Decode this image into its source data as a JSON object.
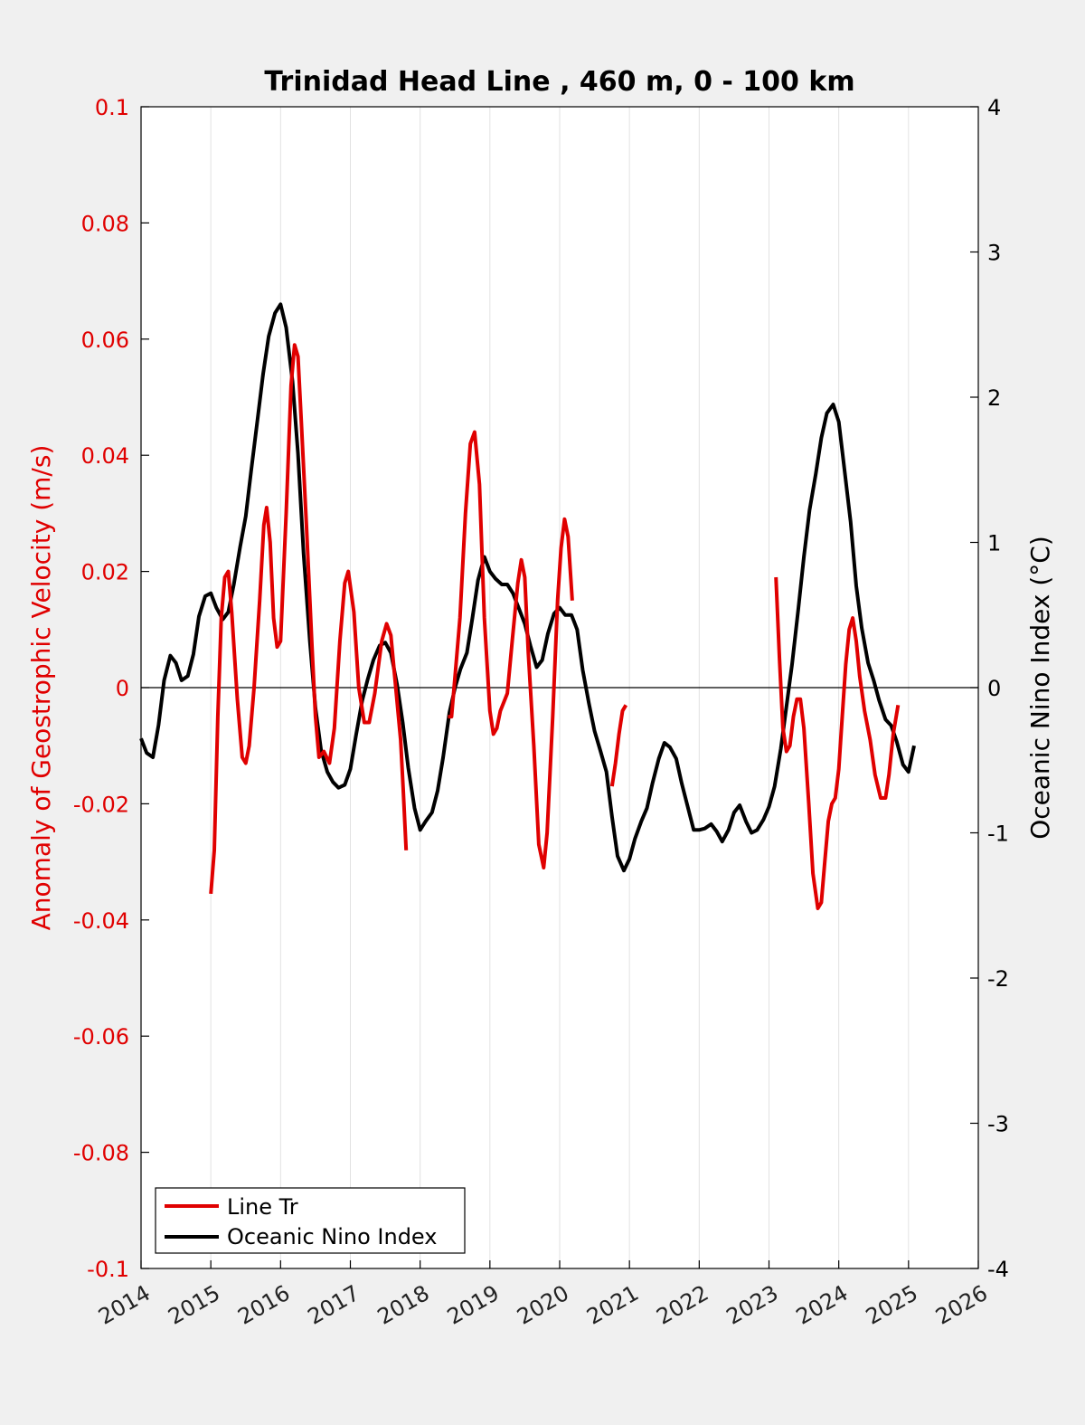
{
  "chart_data": {
    "type": "line",
    "title": "Trinidad Head Line , 460 m, 0 - 100 km",
    "ylabel_left": "Anomaly of Geostrophic Velocity (m/s)",
    "ylabel_right": "Oceanic Nino Index (°C)",
    "xlim": [
      2014,
      2026
    ],
    "ylim_left": [
      -0.1,
      0.1
    ],
    "ylim_right": [
      -4,
      4
    ],
    "x_ticks": [
      2014,
      2015,
      2016,
      2017,
      2018,
      2019,
      2020,
      2021,
      2022,
      2023,
      2024,
      2025,
      2026
    ],
    "x_tick_labels": [
      "2014",
      "2015",
      "2016",
      "2017",
      "2018",
      "2019",
      "2020",
      "2021",
      "2022",
      "2023",
      "2024",
      "2025",
      "2026"
    ],
    "y_left_ticks": [
      -0.1,
      -0.08,
      -0.06,
      -0.04,
      -0.02,
      0,
      0.02,
      0.04,
      0.06,
      0.08,
      0.1
    ],
    "y_left_tick_labels": [
      "-0.1",
      "-0.08",
      "-0.06",
      "-0.04",
      "-0.02",
      "0",
      "0.02",
      "0.04",
      "0.06",
      "0.08",
      "0.1"
    ],
    "y_right_ticks": [
      -4,
      -3,
      -2,
      -1,
      0,
      1,
      2,
      3,
      4
    ],
    "y_right_tick_labels": [
      "-4",
      "-3",
      "-2",
      "-1",
      "0",
      "1",
      "2",
      "3",
      "4"
    ],
    "grid": "vertical",
    "legend_position": "bottom-left",
    "series": [
      {
        "name": "Line Tr",
        "axis": "left",
        "color": "#e00000",
        "segments": [
          [
            [
              2015.0,
              -0.0355
            ],
            [
              2015.05,
              -0.028
            ],
            [
              2015.1,
              -0.005
            ],
            [
              2015.15,
              0.012
            ],
            [
              2015.2,
              0.019
            ],
            [
              2015.25,
              0.02
            ],
            [
              2015.3,
              0.013
            ],
            [
              2015.38,
              -0.002
            ],
            [
              2015.45,
              -0.012
            ],
            [
              2015.5,
              -0.013
            ],
            [
              2015.55,
              -0.01
            ],
            [
              2015.62,
              0.0
            ],
            [
              2015.7,
              0.015
            ],
            [
              2015.76,
              0.028
            ],
            [
              2015.8,
              0.031
            ],
            [
              2015.85,
              0.025
            ],
            [
              2015.9,
              0.012
            ],
            [
              2015.95,
              0.007
            ],
            [
              2016.0,
              0.008
            ],
            [
              2016.08,
              0.03
            ],
            [
              2016.15,
              0.052
            ],
            [
              2016.2,
              0.059
            ],
            [
              2016.25,
              0.057
            ],
            [
              2016.3,
              0.045
            ],
            [
              2016.37,
              0.028
            ],
            [
              2016.45,
              0.007
            ],
            [
              2016.5,
              -0.005
            ],
            [
              2016.55,
              -0.012
            ],
            [
              2016.62,
              -0.011
            ],
            [
              2016.7,
              -0.013
            ],
            [
              2016.77,
              -0.007
            ],
            [
              2016.85,
              0.008
            ],
            [
              2016.92,
              0.018
            ],
            [
              2016.97,
              0.02
            ],
            [
              2017.05,
              0.013
            ],
            [
              2017.12,
              0.0
            ],
            [
              2017.2,
              -0.006
            ],
            [
              2017.27,
              -0.006
            ],
            [
              2017.35,
              -0.001
            ],
            [
              2017.45,
              0.008
            ],
            [
              2017.52,
              0.011
            ],
            [
              2017.58,
              0.009
            ],
            [
              2017.65,
              0.0
            ],
            [
              2017.72,
              -0.009
            ],
            [
              2017.76,
              -0.018
            ],
            [
              2017.8,
              -0.028
            ]
          ],
          [
            [
              2018.4,
              -0.005
            ],
            [
              2018.45,
              -0.005
            ],
            [
              2018.5,
              0.002
            ],
            [
              2018.57,
              0.012
            ],
            [
              2018.65,
              0.03
            ],
            [
              2018.72,
              0.042
            ],
            [
              2018.78,
              0.044
            ],
            [
              2018.85,
              0.035
            ],
            [
              2018.92,
              0.012
            ],
            [
              2019.0,
              -0.004
            ],
            [
              2019.05,
              -0.008
            ],
            [
              2019.1,
              -0.007
            ],
            [
              2019.15,
              -0.004
            ],
            [
              2019.25,
              -0.001
            ],
            [
              2019.32,
              0.008
            ],
            [
              2019.4,
              0.018
            ],
            [
              2019.45,
              0.022
            ],
            [
              2019.5,
              0.019
            ],
            [
              2019.55,
              0.006
            ],
            [
              2019.63,
              -0.01
            ],
            [
              2019.7,
              -0.027
            ],
            [
              2019.77,
              -0.031
            ],
            [
              2019.82,
              -0.025
            ],
            [
              2019.9,
              -0.005
            ],
            [
              2019.97,
              0.015
            ],
            [
              2020.02,
              0.024
            ],
            [
              2020.07,
              0.029
            ],
            [
              2020.12,
              0.026
            ],
            [
              2020.18,
              0.015
            ]
          ],
          [
            [
              2020.75,
              -0.017
            ],
            [
              2020.8,
              -0.013
            ],
            [
              2020.85,
              -0.008
            ],
            [
              2020.9,
              -0.004
            ],
            [
              2020.95,
              -0.003
            ]
          ],
          [
            [
              2023.1,
              0.019
            ],
            [
              2023.15,
              0.005
            ],
            [
              2023.2,
              -0.007
            ],
            [
              2023.25,
              -0.011
            ],
            [
              2023.3,
              -0.01
            ],
            [
              2023.35,
              -0.005
            ],
            [
              2023.4,
              -0.002
            ],
            [
              2023.45,
              -0.002
            ],
            [
              2023.5,
              -0.007
            ],
            [
              2023.57,
              -0.02
            ],
            [
              2023.63,
              -0.032
            ],
            [
              2023.7,
              -0.038
            ],
            [
              2023.75,
              -0.037
            ],
            [
              2023.8,
              -0.03
            ],
            [
              2023.85,
              -0.023
            ],
            [
              2023.9,
              -0.02
            ],
            [
              2023.95,
              -0.019
            ],
            [
              2024.0,
              -0.014
            ],
            [
              2024.05,
              -0.005
            ],
            [
              2024.1,
              0.004
            ],
            [
              2024.15,
              0.01
            ],
            [
              2024.2,
              0.012
            ],
            [
              2024.25,
              0.008
            ],
            [
              2024.3,
              0.002
            ],
            [
              2024.37,
              -0.004
            ],
            [
              2024.45,
              -0.009
            ],
            [
              2024.52,
              -0.015
            ],
            [
              2024.6,
              -0.019
            ],
            [
              2024.67,
              -0.019
            ],
            [
              2024.72,
              -0.015
            ],
            [
              2024.78,
              -0.008
            ],
            [
              2024.85,
              -0.003
            ]
          ]
        ]
      },
      {
        "name": "Oceanic Nino Index",
        "axis": "right",
        "color": "#000000",
        "segments": [
          [
            [
              2014.0,
              -0.35
            ],
            [
              2014.08,
              -0.45
            ],
            [
              2014.17,
              -0.48
            ],
            [
              2014.25,
              -0.26
            ],
            [
              2014.33,
              0.05
            ],
            [
              2014.42,
              0.22
            ],
            [
              2014.5,
              0.17
            ],
            [
              2014.58,
              0.05
            ],
            [
              2014.67,
              0.08
            ],
            [
              2014.75,
              0.23
            ],
            [
              2014.83,
              0.49
            ],
            [
              2014.92,
              0.63
            ],
            [
              2015.0,
              0.65
            ],
            [
              2015.08,
              0.55
            ],
            [
              2015.17,
              0.47
            ],
            [
              2015.25,
              0.52
            ],
            [
              2015.33,
              0.71
            ],
            [
              2015.42,
              0.97
            ],
            [
              2015.5,
              1.18
            ],
            [
              2015.58,
              1.5
            ],
            [
              2015.67,
              1.85
            ],
            [
              2015.75,
              2.16
            ],
            [
              2015.83,
              2.42
            ],
            [
              2015.92,
              2.58
            ],
            [
              2016.0,
              2.64
            ],
            [
              2016.08,
              2.48
            ],
            [
              2016.17,
              2.11
            ],
            [
              2016.25,
              1.61
            ],
            [
              2016.33,
              0.92
            ],
            [
              2016.42,
              0.32
            ],
            [
              2016.5,
              -0.14
            ],
            [
              2016.58,
              -0.43
            ],
            [
              2016.67,
              -0.58
            ],
            [
              2016.75,
              -0.65
            ],
            [
              2016.83,
              -0.69
            ],
            [
              2016.92,
              -0.67
            ],
            [
              2017.0,
              -0.56
            ],
            [
              2017.08,
              -0.33
            ],
            [
              2017.17,
              -0.09
            ],
            [
              2017.25,
              0.06
            ],
            [
              2017.33,
              0.19
            ],
            [
              2017.42,
              0.29
            ],
            [
              2017.5,
              0.31
            ],
            [
              2017.58,
              0.24
            ],
            [
              2017.67,
              0.02
            ],
            [
              2017.75,
              -0.24
            ],
            [
              2017.83,
              -0.55
            ],
            [
              2017.92,
              -0.83
            ],
            [
              2018.0,
              -0.98
            ],
            [
              2018.08,
              -0.92
            ],
            [
              2018.17,
              -0.86
            ],
            [
              2018.25,
              -0.71
            ],
            [
              2018.33,
              -0.48
            ],
            [
              2018.42,
              -0.17
            ],
            [
              2018.5,
              0.0
            ],
            [
              2018.58,
              0.13
            ],
            [
              2018.67,
              0.24
            ],
            [
              2018.75,
              0.48
            ],
            [
              2018.83,
              0.74
            ],
            [
              2018.92,
              0.9
            ],
            [
              2019.0,
              0.8
            ],
            [
              2019.08,
              0.75
            ],
            [
              2019.17,
              0.71
            ],
            [
              2019.25,
              0.71
            ],
            [
              2019.33,
              0.65
            ],
            [
              2019.42,
              0.54
            ],
            [
              2019.5,
              0.44
            ],
            [
              2019.58,
              0.29
            ],
            [
              2019.67,
              0.14
            ],
            [
              2019.75,
              0.19
            ],
            [
              2019.83,
              0.37
            ],
            [
              2019.92,
              0.51
            ],
            [
              2020.0,
              0.55
            ],
            [
              2020.08,
              0.5
            ],
            [
              2020.17,
              0.5
            ],
            [
              2020.25,
              0.4
            ],
            [
              2020.33,
              0.12
            ],
            [
              2020.42,
              -0.11
            ],
            [
              2020.5,
              -0.3
            ],
            [
              2020.58,
              -0.43
            ],
            [
              2020.67,
              -0.58
            ],
            [
              2020.75,
              -0.89
            ],
            [
              2020.83,
              -1.16
            ],
            [
              2020.92,
              -1.26
            ],
            [
              2021.0,
              -1.18
            ],
            [
              2021.08,
              -1.04
            ],
            [
              2021.17,
              -0.92
            ],
            [
              2021.25,
              -0.83
            ],
            [
              2021.33,
              -0.66
            ],
            [
              2021.42,
              -0.49
            ],
            [
              2021.5,
              -0.38
            ],
            [
              2021.58,
              -0.41
            ],
            [
              2021.67,
              -0.49
            ],
            [
              2021.75,
              -0.66
            ],
            [
              2021.83,
              -0.81
            ],
            [
              2021.92,
              -0.98
            ],
            [
              2022.0,
              -0.98
            ],
            [
              2022.08,
              -0.97
            ],
            [
              2022.17,
              -0.94
            ],
            [
              2022.25,
              -0.99
            ],
            [
              2022.33,
              -1.06
            ],
            [
              2022.42,
              -0.98
            ],
            [
              2022.5,
              -0.86
            ],
            [
              2022.58,
              -0.81
            ],
            [
              2022.67,
              -0.92
            ],
            [
              2022.75,
              -1.0
            ],
            [
              2022.83,
              -0.98
            ],
            [
              2022.92,
              -0.91
            ],
            [
              2023.0,
              -0.82
            ],
            [
              2023.08,
              -0.68
            ],
            [
              2023.17,
              -0.42
            ],
            [
              2023.25,
              -0.13
            ],
            [
              2023.33,
              0.16
            ],
            [
              2023.42,
              0.54
            ],
            [
              2023.5,
              0.9
            ],
            [
              2023.58,
              1.22
            ],
            [
              2023.67,
              1.47
            ],
            [
              2023.75,
              1.72
            ],
            [
              2023.83,
              1.89
            ],
            [
              2023.92,
              1.95
            ],
            [
              2024.0,
              1.83
            ],
            [
              2024.08,
              1.51
            ],
            [
              2024.17,
              1.14
            ],
            [
              2024.25,
              0.7
            ],
            [
              2024.33,
              0.41
            ],
            [
              2024.42,
              0.17
            ],
            [
              2024.5,
              0.05
            ],
            [
              2024.58,
              -0.09
            ],
            [
              2024.67,
              -0.22
            ],
            [
              2024.75,
              -0.26
            ],
            [
              2024.83,
              -0.37
            ],
            [
              2024.92,
              -0.53
            ],
            [
              2025.0,
              -0.58
            ],
            [
              2025.08,
              -0.4
            ]
          ]
        ]
      }
    ]
  }
}
